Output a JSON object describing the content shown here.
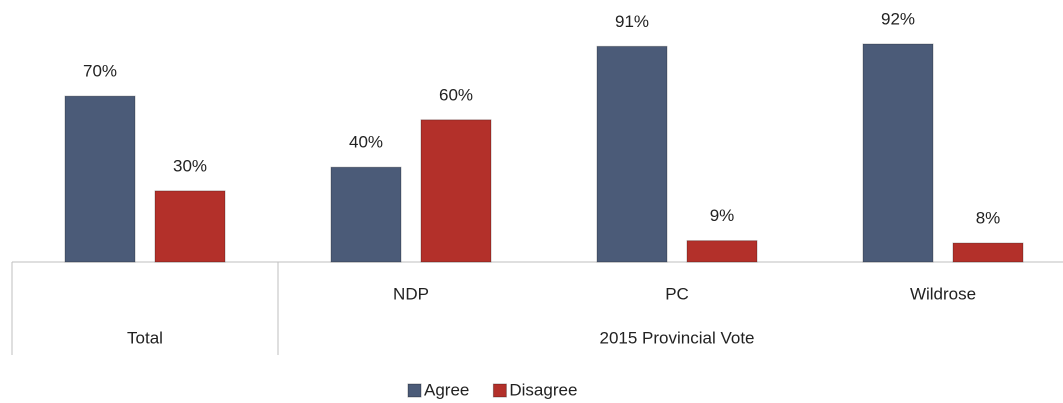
{
  "chart_data": {
    "type": "bar",
    "category_groups": [
      {
        "name": "Total",
        "categories": [
          null
        ]
      },
      {
        "name": "2015 Provincial Vote",
        "categories": [
          "NDP",
          "PC",
          "Wildrose"
        ]
      }
    ],
    "series": [
      {
        "name": "Agree",
        "color": "#4b5b78",
        "values": [
          70,
          40,
          91,
          92
        ],
        "value_labels": [
          "70%",
          "40%",
          "91%",
          "92%"
        ]
      },
      {
        "name": "Disagree",
        "color": "#b3302a",
        "values": [
          30,
          60,
          9,
          8
        ],
        "value_labels": [
          "30%",
          "60%",
          "9%",
          "8%"
        ]
      }
    ],
    "legend": "bottom"
  }
}
